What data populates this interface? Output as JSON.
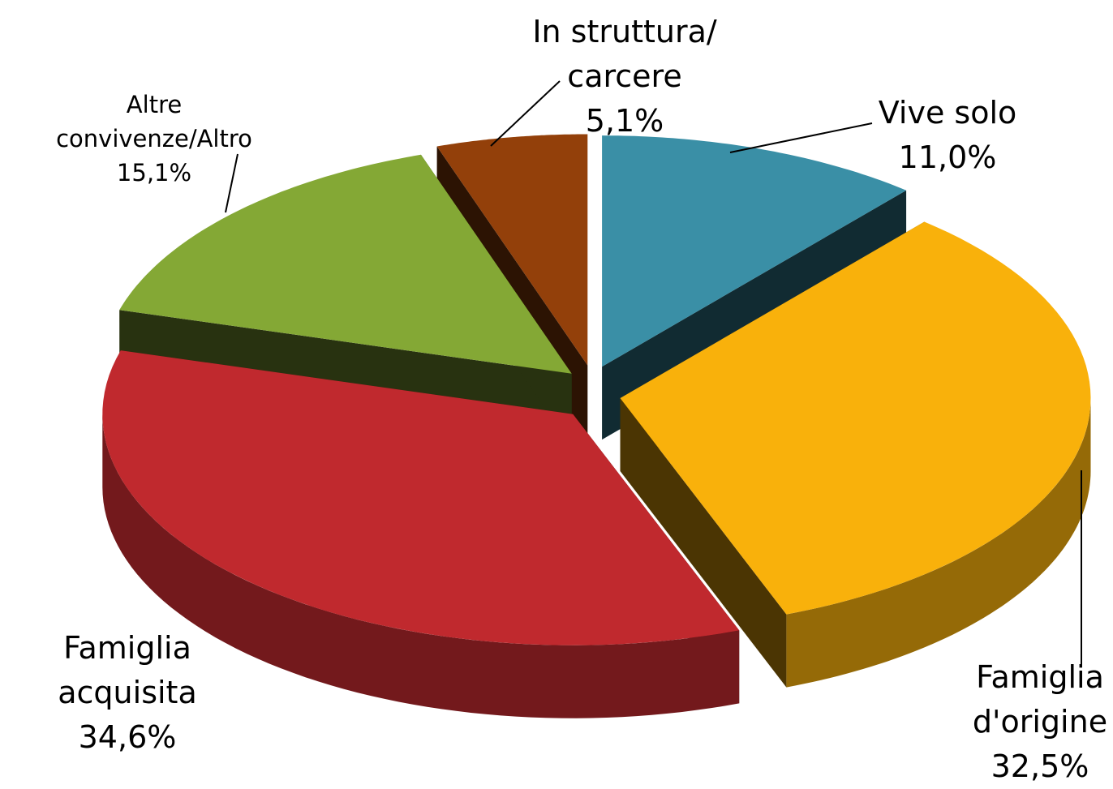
{
  "chart_data": {
    "type": "pie",
    "categories": [
      "Vive solo",
      "Famiglia\nd'origine",
      "Famiglia\nacquisita",
      "Altre\nconvivenze/Altro",
      "In struttura/\ncarcere"
    ],
    "values": [
      11.0,
      32.5,
      34.6,
      15.1,
      5.1
    ],
    "value_labels": [
      "11,0%",
      "32,5%",
      "34,6%",
      "15,1%",
      "5,1%"
    ],
    "colors": [
      "#3a8fa6",
      "#f9b10b",
      "#c0292e",
      "#84a835",
      "#93400a"
    ]
  }
}
